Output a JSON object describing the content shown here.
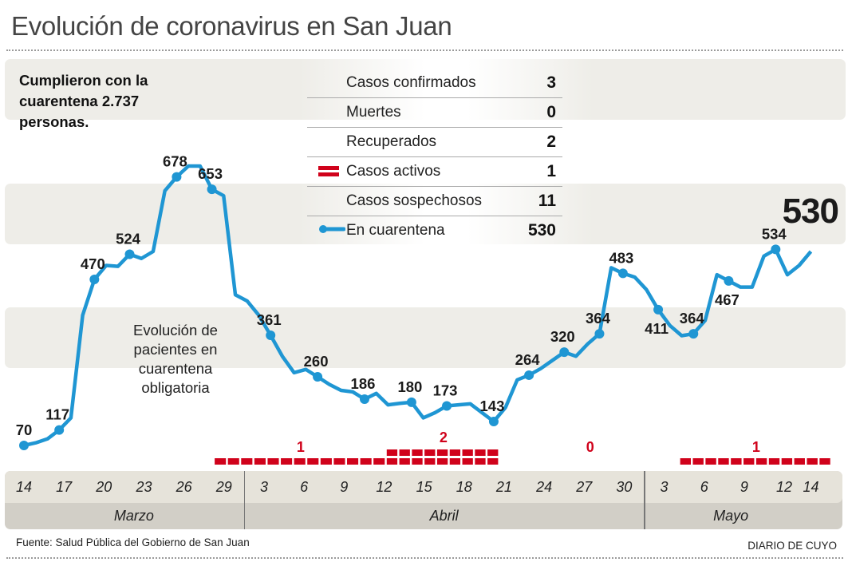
{
  "title": "Evolución de coronavirus en San Juan",
  "headline": "Cumplieron con la cuarentena  2.737 personas.",
  "legend": {
    "rows": [
      {
        "label": "Casos confirmados",
        "value": "3",
        "swatch": "none"
      },
      {
        "label": "Muertes",
        "value": "0",
        "swatch": "none"
      },
      {
        "label": "Recuperados",
        "value": "2",
        "swatch": "none"
      },
      {
        "label": "Casos activos",
        "value": "1",
        "swatch": "red-bars"
      },
      {
        "label": "Casos sospechosos",
        "value": "11",
        "swatch": "none"
      },
      {
        "label": "En cuarentena",
        "value": "530",
        "swatch": "blue-line"
      }
    ]
  },
  "latest_value": "530",
  "chart_note": "Evolución de pacientes en cuarentena obligatoria",
  "source": "Fuente: Salud Pública del Gobierno de San Juan",
  "brand": "DIARIO DE CUYO",
  "colors": {
    "line": "#1f96d3",
    "active": "#d0021b",
    "band": "#eeede8",
    "axis_top": "#e6e3da",
    "axis_bottom": "#d2cfc7"
  },
  "chart_data": {
    "type": "line",
    "title": "Evolución de pacientes en cuarentena obligatoria",
    "xlabel": "",
    "ylabel": "",
    "grid": false,
    "legend_position": "top-center",
    "x_ticks": [
      {
        "day": 0,
        "label": "14"
      },
      {
        "day": 3,
        "label": "17"
      },
      {
        "day": 6,
        "label": "20"
      },
      {
        "day": 9,
        "label": "23"
      },
      {
        "day": 12,
        "label": "26"
      },
      {
        "day": 15,
        "label": "29"
      },
      {
        "day": 18,
        "label": "3"
      },
      {
        "day": 21,
        "label": "6"
      },
      {
        "day": 24,
        "label": "9"
      },
      {
        "day": 27,
        "label": "12"
      },
      {
        "day": 30,
        "label": "15"
      },
      {
        "day": 33,
        "label": "18"
      },
      {
        "day": 36,
        "label": "21"
      },
      {
        "day": 39,
        "label": "24"
      },
      {
        "day": 42,
        "label": "27"
      },
      {
        "day": 45,
        "label": "30"
      },
      {
        "day": 48,
        "label": "3"
      },
      {
        "day": 51,
        "label": "6"
      },
      {
        "day": 54,
        "label": "9"
      },
      {
        "day": 57,
        "label": "12"
      },
      {
        "day": 59,
        "label": "14"
      }
    ],
    "months": [
      {
        "label": "Marzo",
        "start_day": 0,
        "end_day": 16.5
      },
      {
        "label": "Abril",
        "start_day": 16.5,
        "end_day": 46.5
      },
      {
        "label": "Mayo",
        "start_day": 46.5,
        "end_day": 59.5
      }
    ],
    "series": [
      {
        "name": "En cuarentena",
        "points": [
          {
            "day": 0,
            "value": 70,
            "label": "70"
          },
          {
            "day": 1,
            "value": 78
          },
          {
            "day": 2,
            "value": 90
          },
          {
            "day": 3,
            "value": 117,
            "label": "117"
          },
          {
            "day": 4,
            "value": 150
          },
          {
            "day": 5,
            "value": 400
          },
          {
            "day": 6,
            "value": 470,
            "label": "470"
          },
          {
            "day": 7,
            "value": 500
          },
          {
            "day": 8,
            "value": 498
          },
          {
            "day": 9,
            "value": 524,
            "label": "524"
          },
          {
            "day": 10,
            "value": 515
          },
          {
            "day": 11,
            "value": 530
          },
          {
            "day": 12,
            "value": 650
          },
          {
            "day": 13,
            "value": 678,
            "label": "678"
          },
          {
            "day": 14,
            "value": 700
          },
          {
            "day": 15,
            "value": 700
          },
          {
            "day": 16,
            "value": 653,
            "label": "653"
          },
          {
            "day": 17,
            "value": 640
          },
          {
            "day": 18,
            "value": 440
          },
          {
            "day": 19,
            "value": 428
          },
          {
            "day": 20,
            "value": 400
          },
          {
            "day": 21,
            "value": 361,
            "label": "361"
          },
          {
            "day": 22,
            "value": 310
          },
          {
            "day": 23,
            "value": 270
          },
          {
            "day": 24,
            "value": 278
          },
          {
            "day": 25,
            "value": 260,
            "label": "260"
          },
          {
            "day": 26,
            "value": 235
          },
          {
            "day": 27,
            "value": 215
          },
          {
            "day": 28,
            "value": 210
          },
          {
            "day": 29,
            "value": 186,
            "label": "186"
          },
          {
            "day": 30,
            "value": 205
          },
          {
            "day": 31,
            "value": 175
          },
          {
            "day": 32,
            "value": 178
          },
          {
            "day": 33,
            "value": 180,
            "label": "180"
          },
          {
            "day": 34,
            "value": 150
          },
          {
            "day": 35,
            "value": 160
          },
          {
            "day": 36,
            "value": 173,
            "label": "173"
          },
          {
            "day": 37,
            "value": 175
          },
          {
            "day": 38,
            "value": 177
          },
          {
            "day": 39,
            "value": 160
          },
          {
            "day": 40,
            "value": 143,
            "label": "143"
          },
          {
            "day": 41,
            "value": 170
          },
          {
            "day": 42,
            "value": 250
          },
          {
            "day": 43,
            "value": 264,
            "label": "264"
          },
          {
            "day": 44,
            "value": 280
          },
          {
            "day": 45,
            "value": 300
          },
          {
            "day": 46,
            "value": 320,
            "label": "320"
          },
          {
            "day": 47,
            "value": 310
          },
          {
            "day": 48,
            "value": 340
          },
          {
            "day": 49,
            "value": 364,
            "label": "364"
          },
          {
            "day": 50,
            "value": 495
          },
          {
            "day": 51,
            "value": 483,
            "label": "483"
          },
          {
            "day": 52,
            "value": 475
          },
          {
            "day": 53,
            "value": 450
          },
          {
            "day": 54,
            "value": 411,
            "label": "411"
          },
          {
            "day": 55,
            "value": 380
          },
          {
            "day": 56,
            "value": 360
          },
          {
            "day": 57,
            "value": 364,
            "label": "364"
          },
          {
            "day": 58,
            "value": 390
          },
          {
            "day": 59,
            "value": 480
          },
          {
            "day": 60,
            "value": 467,
            "label": "467"
          },
          {
            "day": 61,
            "value": 455
          },
          {
            "day": 62,
            "value": 455
          },
          {
            "day": 63,
            "value": 520
          },
          {
            "day": 64,
            "value": 534,
            "label": "534"
          },
          {
            "day": 65,
            "value": 480
          },
          {
            "day": 66,
            "value": 500
          },
          {
            "day": 67,
            "value": 530
          }
        ]
      }
    ],
    "active_cases": [
      {
        "from_label": "28 mar",
        "to_label": "11 abr",
        "count": 1,
        "label": "1"
      },
      {
        "from_label": "12 abr",
        "to_label": "20 abr",
        "count": 2,
        "label": "2"
      },
      {
        "from_label": "21 abr",
        "to_label": "4 may",
        "count": 0,
        "label": "0"
      },
      {
        "from_label": "5 may",
        "to_label": "14 may",
        "count": 1,
        "label": "1"
      }
    ]
  }
}
